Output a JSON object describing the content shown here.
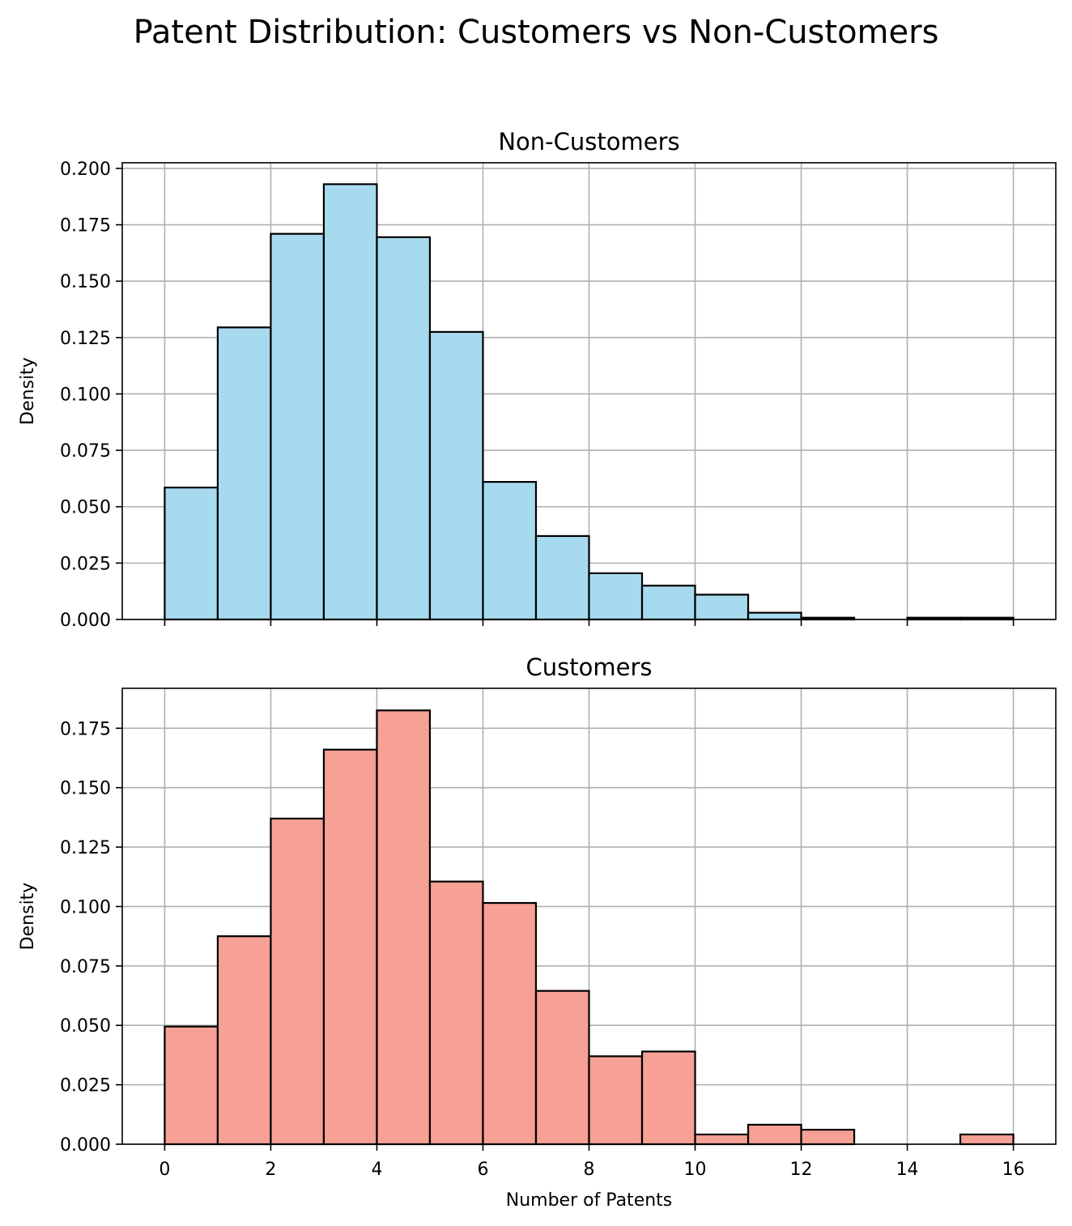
{
  "title": "Patent Distribution: Customers vs Non-Customers",
  "chart_data": [
    {
      "type": "bar",
      "subtype": "histogram",
      "title": "Non-Customers",
      "xlabel": "",
      "ylabel": "Density",
      "color": "#a8daef",
      "edgecolor": "#000000",
      "bin_edges": [
        0,
        1,
        2,
        3,
        4,
        5,
        6,
        7,
        8,
        9,
        10,
        11,
        12,
        13,
        14,
        15,
        16
      ],
      "values": [
        0.0585,
        0.1295,
        0.171,
        0.193,
        0.1695,
        0.1275,
        0.061,
        0.037,
        0.0205,
        0.015,
        0.011,
        0.003,
        0.0008,
        0.0,
        0.0008,
        0.0008
      ],
      "xlim": [
        -0.8,
        16.8
      ],
      "ylim": [
        0,
        0.2025
      ],
      "xticks": [
        0,
        2,
        4,
        6,
        8,
        10,
        12,
        14,
        16
      ],
      "xtick_labels_shown": false,
      "yticks": [
        0.0,
        0.025,
        0.05,
        0.075,
        0.1,
        0.125,
        0.15,
        0.175,
        0.2
      ],
      "ytick_labels": [
        "0.000",
        "0.025",
        "0.050",
        "0.075",
        "0.100",
        "0.125",
        "0.150",
        "0.175",
        "0.200"
      ],
      "grid": true
    },
    {
      "type": "bar",
      "subtype": "histogram",
      "title": "Customers",
      "xlabel": "Number of Patents",
      "ylabel": "Density",
      "color": "#f7a095",
      "edgecolor": "#000000",
      "bin_edges": [
        0,
        1,
        2,
        3,
        4,
        5,
        6,
        7,
        8,
        9,
        10,
        11,
        12,
        13,
        14,
        15,
        16
      ],
      "values": [
        0.0495,
        0.0875,
        0.137,
        0.166,
        0.1825,
        0.1105,
        0.1015,
        0.0645,
        0.037,
        0.039,
        0.0041,
        0.0082,
        0.0061,
        0.0,
        0.0,
        0.0041
      ],
      "xlim": [
        -0.8,
        16.8
      ],
      "ylim": [
        0,
        0.1918
      ],
      "xticks": [
        0,
        2,
        4,
        6,
        8,
        10,
        12,
        14,
        16
      ],
      "xtick_labels": [
        "0",
        "2",
        "4",
        "6",
        "8",
        "10",
        "12",
        "14",
        "16"
      ],
      "xtick_labels_shown": true,
      "yticks": [
        0.0,
        0.025,
        0.05,
        0.075,
        0.1,
        0.125,
        0.15,
        0.175
      ],
      "ytick_labels": [
        "0.000",
        "0.025",
        "0.050",
        "0.075",
        "0.100",
        "0.125",
        "0.150",
        "0.175"
      ],
      "grid": true
    }
  ]
}
